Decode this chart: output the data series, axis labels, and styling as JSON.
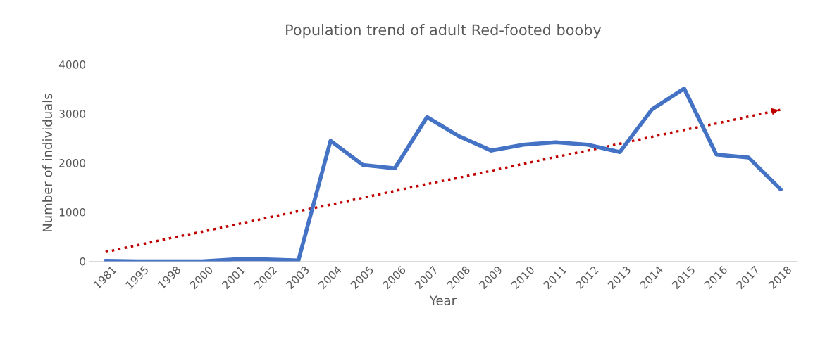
{
  "chart_data": {
    "type": "line",
    "title": "Population trend of adult Red-footed booby",
    "xlabel": "Year",
    "ylabel": "Number of individuals",
    "categories": [
      "1981",
      "1995",
      "1998",
      "2000",
      "2001",
      "2002",
      "2003",
      "2004",
      "2005",
      "2006",
      "2007",
      "2008",
      "2009",
      "2010",
      "2011",
      "2012",
      "2013",
      "2014",
      "2015",
      "2016",
      "2017",
      "2018"
    ],
    "series": [
      {
        "color": "#4472c4",
        "line_style": "solid",
        "values": [
          10,
          0,
          0,
          0,
          40,
          40,
          20,
          2450,
          1960,
          1890,
          2930,
          2540,
          2250,
          2370,
          2420,
          2370,
          2220,
          3090,
          3510,
          2170,
          2110,
          1460
        ]
      },
      {
        "color": "#c00000",
        "line_style": "dotted",
        "values": [
          190,
          330,
          470,
          600,
          740,
          880,
          1020,
          1150,
          1290,
          1430,
          1570,
          1700,
          1840,
          1980,
          2120,
          2250,
          2390,
          2530,
          2670,
          2800,
          2940,
          3080
        ]
      }
    ],
    "ylim": [
      0,
      4000
    ],
    "yticks": [
      0,
      1000,
      2000,
      3000,
      4000
    ],
    "grid": false,
    "legend": false
  }
}
